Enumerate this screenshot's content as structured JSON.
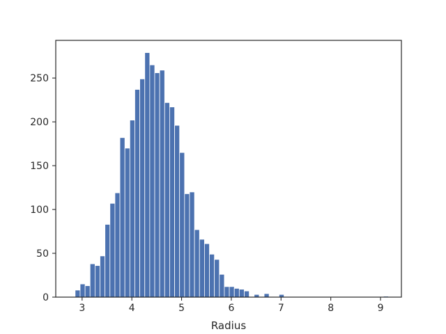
{
  "chart_data": {
    "type": "bar",
    "subtype": "histogram",
    "title": "",
    "xlabel": "Radius",
    "ylabel": "",
    "xlim": [
      2.47,
      9.42
    ],
    "ylim": [
      0,
      293
    ],
    "xticks": [
      3,
      4,
      5,
      6,
      7,
      8,
      9
    ],
    "yticks": [
      0,
      50,
      100,
      150,
      200,
      250
    ],
    "grid": false,
    "legend": "none",
    "bar_color": "#4c72b0",
    "bin_start": 2.86,
    "bin_width": 0.1,
    "values": [
      8,
      15,
      13,
      38,
      36,
      47,
      83,
      107,
      119,
      182,
      170,
      202,
      237,
      249,
      279,
      265,
      256,
      259,
      222,
      217,
      196,
      165,
      118,
      120,
      77,
      66,
      61,
      49,
      43,
      26,
      12,
      12,
      10,
      9,
      7,
      0,
      3,
      0,
      4,
      0,
      0,
      3,
      0,
      0,
      0,
      0,
      0,
      0,
      0,
      0,
      0,
      0,
      0,
      0,
      0,
      0,
      0,
      0,
      0,
      0,
      0,
      0,
      1
    ]
  }
}
